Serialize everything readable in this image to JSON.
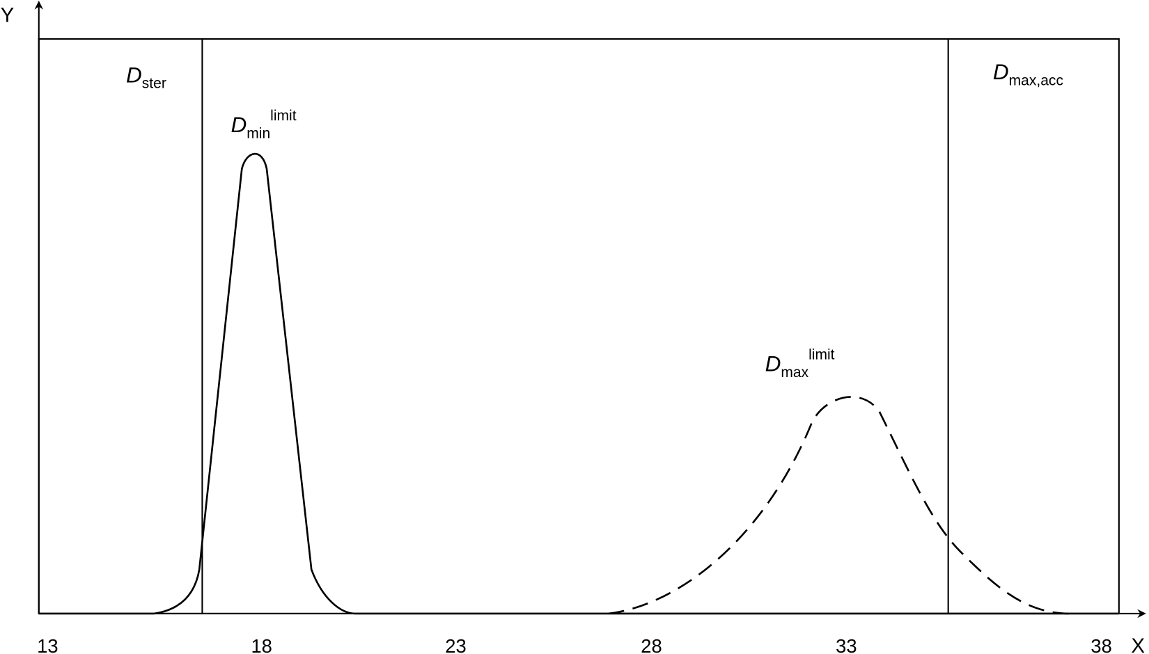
{
  "axes": {
    "x_label": "X",
    "y_label": "Y"
  },
  "x_ticks": [
    "13",
    "18",
    "23",
    "28",
    "33",
    "38"
  ],
  "labels": {
    "d_ster": {
      "main": "D",
      "sub": "ster"
    },
    "d_min_limit": {
      "main": "D",
      "sub": "min",
      "sup": "limit"
    },
    "d_max_limit": {
      "main": "D",
      "sub": "max",
      "sup": "limit"
    },
    "d_max_acc": {
      "main": "D",
      "sub": "max,acc"
    }
  }
}
